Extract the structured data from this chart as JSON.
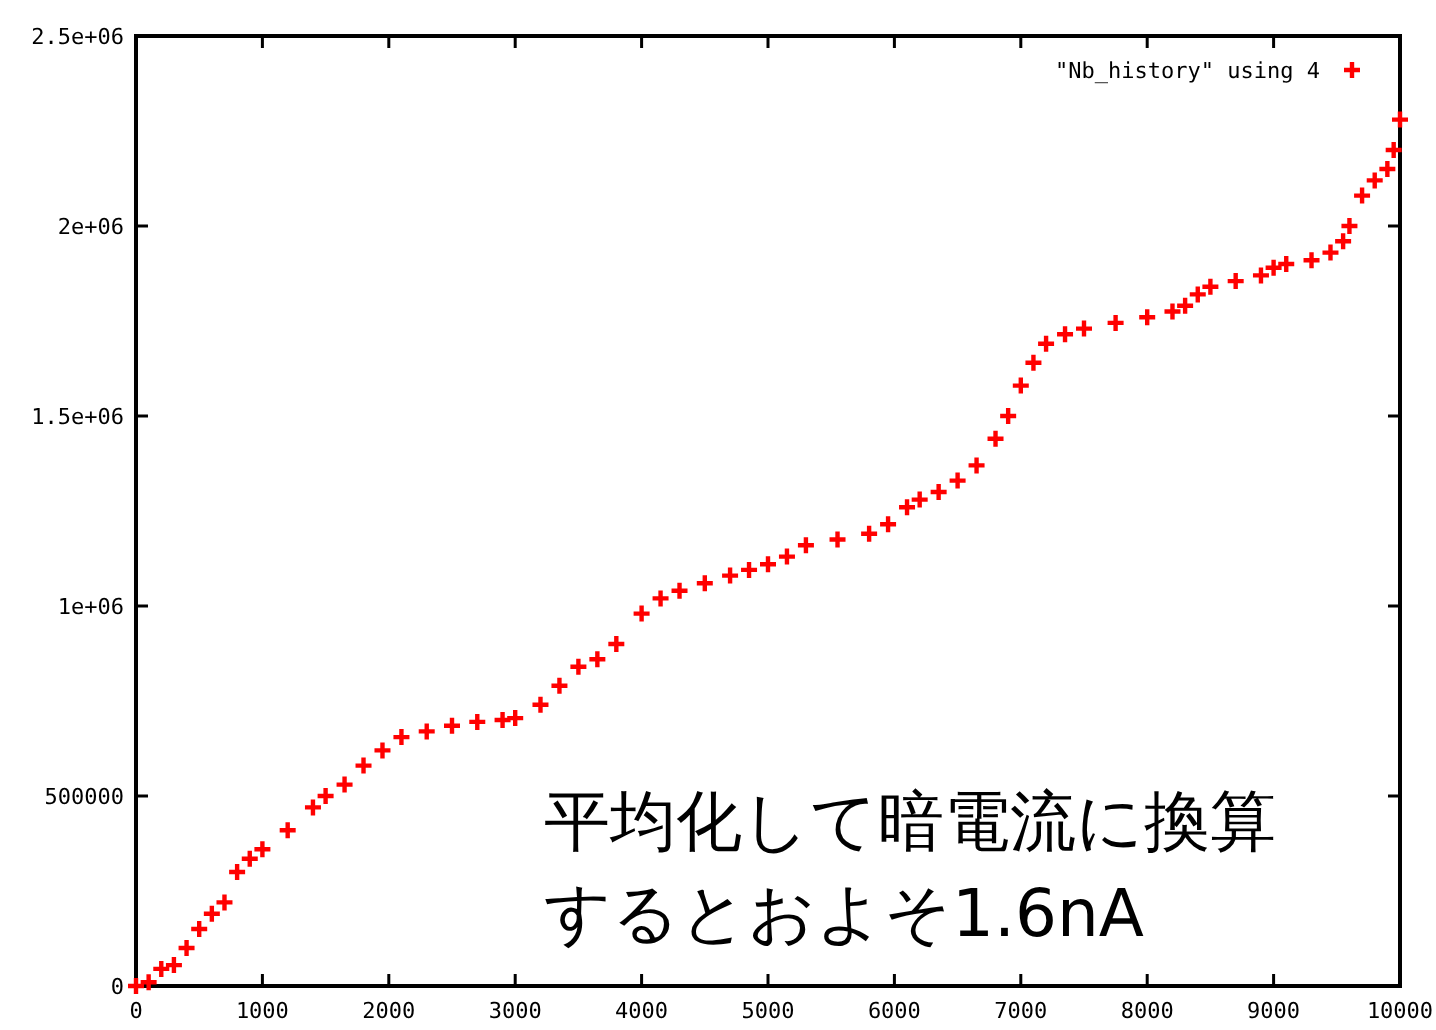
{
  "chart_data": {
    "type": "scatter",
    "marker": "cross",
    "legend": "top right",
    "grid": false,
    "xlim": [
      0,
      10000
    ],
    "xticks": [
      0,
      1000,
      2000,
      3000,
      4000,
      5000,
      6000,
      7000,
      8000,
      9000,
      10000
    ],
    "ylim": [
      0,
      2500000
    ],
    "yticks": [
      0,
      500000,
      {
        "value": 1000000,
        "label": "1e+06"
      },
      {
        "value": 1500000,
        "label": "1.5e+06"
      },
      {
        "value": 2000000,
        "label": "2e+06"
      },
      {
        "value": 2500000,
        "label": "2.5e+06"
      }
    ],
    "annotations": [
      "平均化して暗電流に換算",
      "するとおよそ1.6nA"
    ],
    "series": [
      {
        "name": "\"Nb_history\" using 4",
        "color": "#ff0000",
        "x": [
          0,
          100,
          200,
          300,
          400,
          500,
          600,
          700,
          800,
          900,
          1000,
          1200,
          1400,
          1500,
          1650,
          1800,
          1950,
          2100,
          2300,
          2500,
          2700,
          2900,
          3000,
          3200,
          3350,
          3500,
          3650,
          3800,
          4000,
          4150,
          4300,
          4500,
          4700,
          4850,
          5000,
          5150,
          5300,
          5550,
          5800,
          5950,
          6100,
          6200,
          6350,
          6500,
          6650,
          6800,
          6900,
          7000,
          7100,
          7200,
          7350,
          7500,
          7750,
          8000,
          8200,
          8300,
          8400,
          8500,
          8700,
          8900,
          9000,
          9100,
          9300,
          9450,
          9550,
          9600,
          9700,
          9800,
          9900,
          9950,
          10000
        ],
        "values": [
          0,
          10000,
          45000,
          55000,
          100000,
          150000,
          190000,
          220000,
          300000,
          335000,
          360000,
          410000,
          470000,
          500000,
          530000,
          580000,
          620000,
          655000,
          670000,
          685000,
          695000,
          700000,
          705000,
          740000,
          790000,
          840000,
          860000,
          900000,
          980000,
          1020000,
          1040000,
          1060000,
          1080000,
          1095000,
          1110000,
          1130000,
          1160000,
          1175000,
          1190000,
          1215000,
          1260000,
          1280000,
          1300000,
          1330000,
          1370000,
          1440000,
          1500000,
          1580000,
          1640000,
          1690000,
          1715000,
          1730000,
          1745000,
          1760000,
          1775000,
          1790000,
          1820000,
          1840000,
          1855000,
          1870000,
          1890000,
          1900000,
          1910000,
          1930000,
          1960000,
          2000000,
          2080000,
          2120000,
          2150000,
          2200000,
          2280000
        ]
      }
    ]
  }
}
